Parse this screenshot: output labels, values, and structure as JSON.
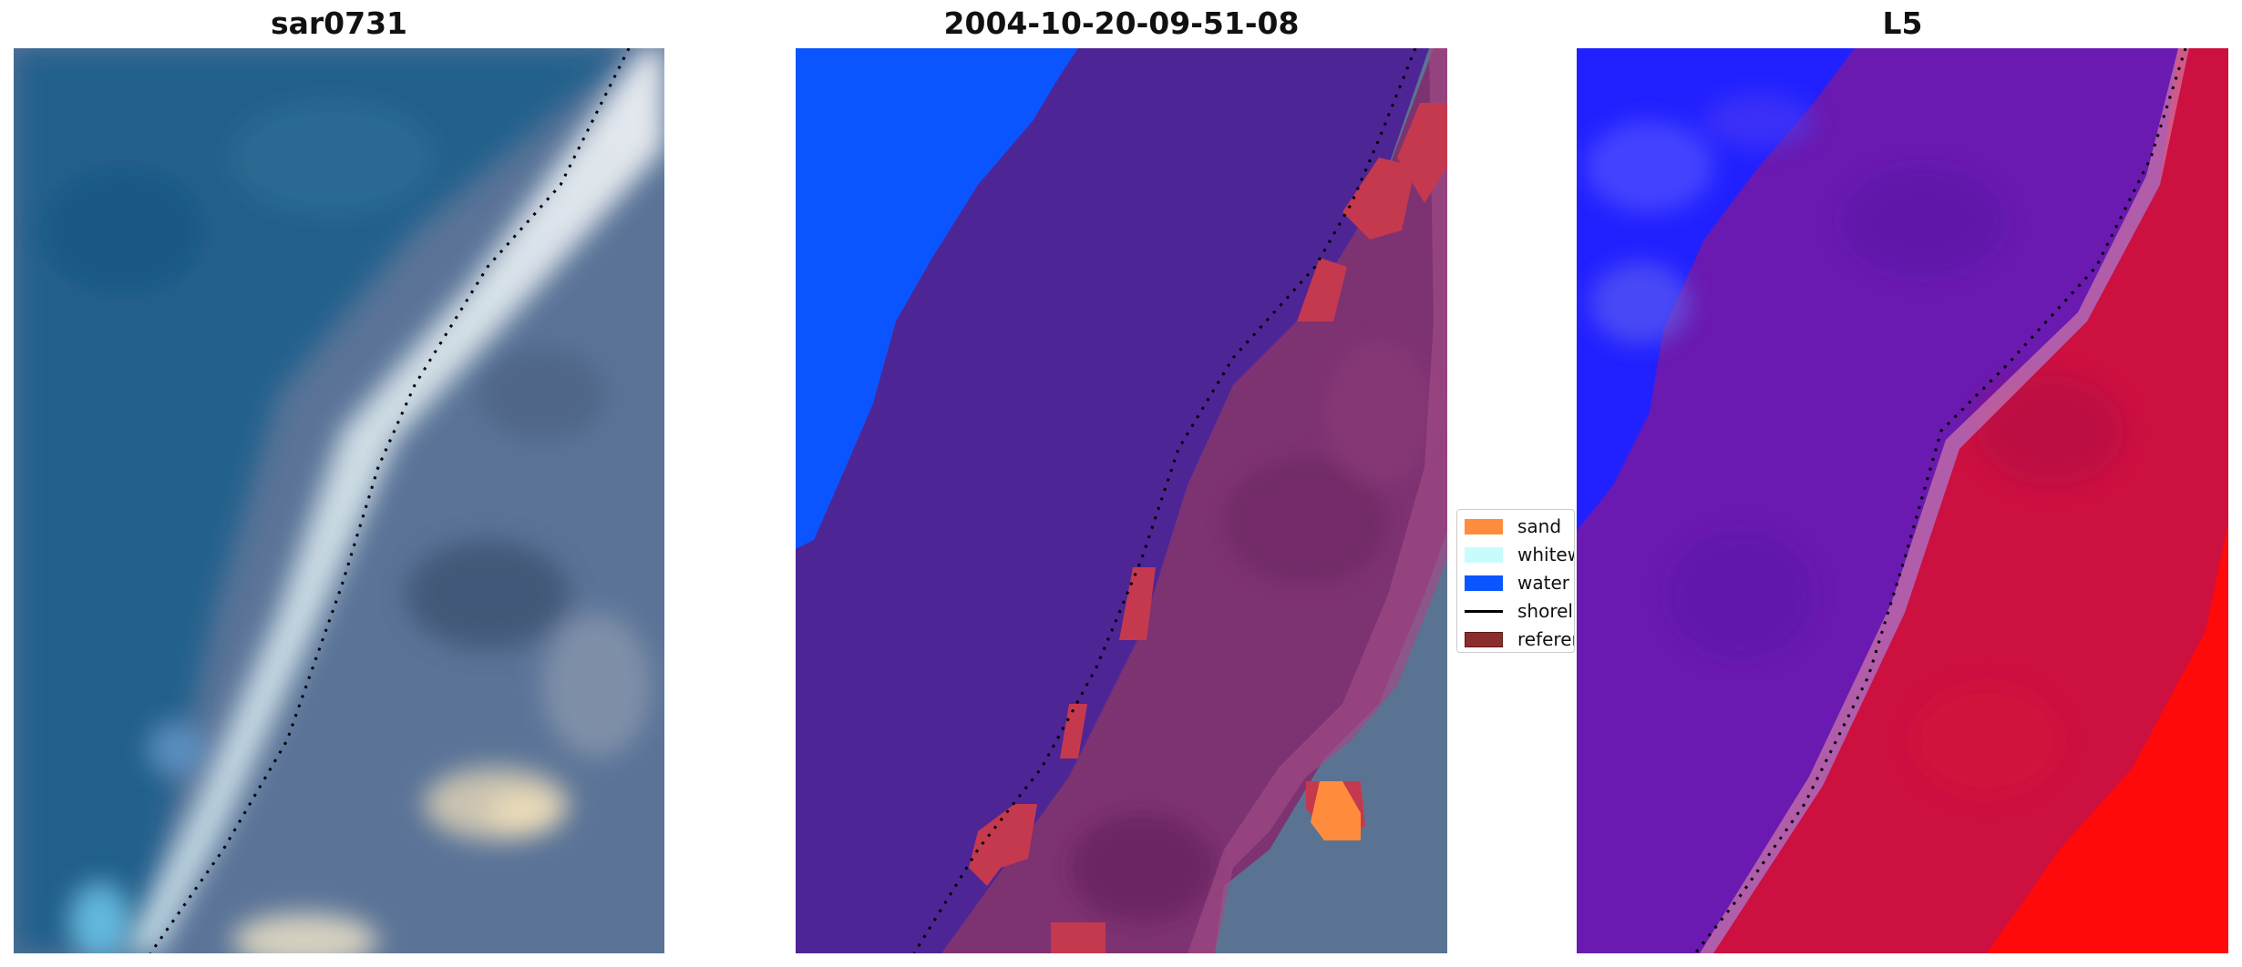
{
  "panels": [
    {
      "title": "sar0731"
    },
    {
      "title": "2004-10-20-09-51-08"
    },
    {
      "title": "L5"
    }
  ],
  "legend": {
    "items": [
      {
        "label": "sand",
        "color": "#ff8c3c",
        "kind": "patch"
      },
      {
        "label": "whitew",
        "color": "#c8fcfc",
        "kind": "patch"
      },
      {
        "label": "water",
        "color": "#0a55ff",
        "kind": "patch"
      },
      {
        "label": "shorel",
        "color": "#000000",
        "kind": "line"
      },
      {
        "label": "referen",
        "color": "#8c2d2d",
        "kind": "patch"
      }
    ]
  },
  "colors": {
    "ocean": "#21608c",
    "land": "#4e6a93",
    "classified_water": "#0a55ff",
    "classified_ocean_overlay": "#4e2595",
    "classified_land_overlay": "#7d3272",
    "index_low": "#2121ff",
    "index_mid": "#6a1ab0",
    "index_high": "#cc1040",
    "index_max": "#ff0a0a"
  }
}
